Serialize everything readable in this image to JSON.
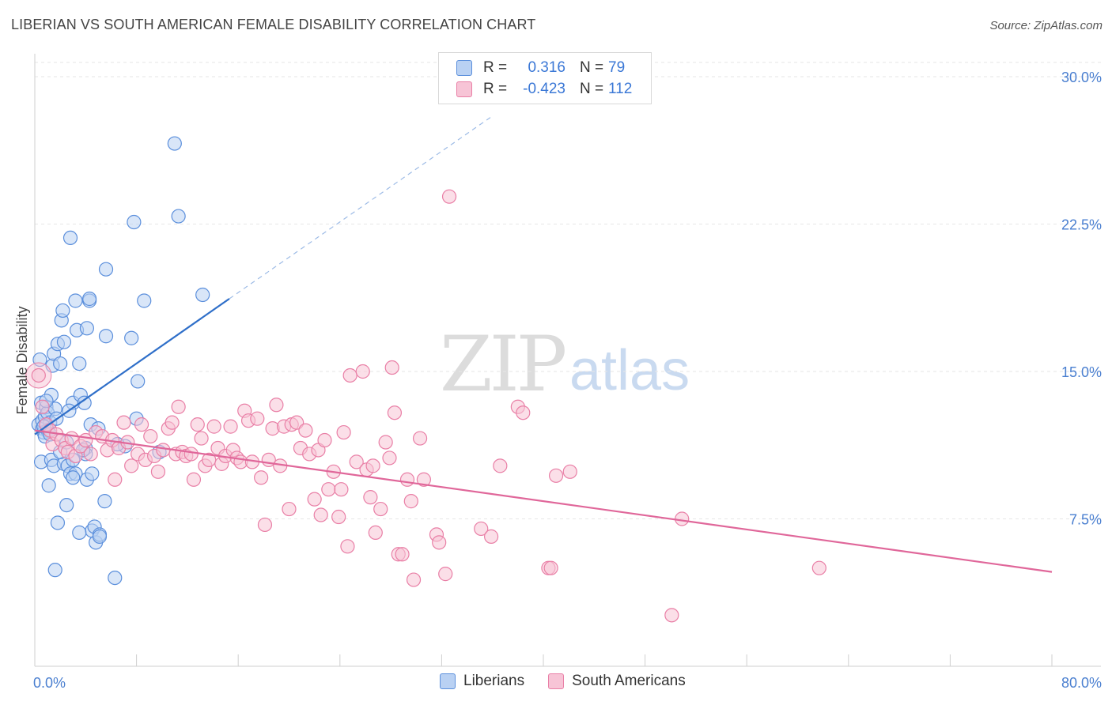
{
  "title": "LIBERIAN VS SOUTH AMERICAN FEMALE DISABILITY CORRELATION CHART",
  "source": "Source: ZipAtlas.com",
  "watermark": {
    "zip": "ZIP",
    "atlas": "atlas"
  },
  "colors": {
    "blue": "#5b8fdc",
    "blue_fill": "#b9d1f3",
    "blue_line": "#2f6fc9",
    "pink": "#e97fa6",
    "pink_fill": "#f7c4d6",
    "pink_line": "#e0679a",
    "grid": "#e6e6e6",
    "axis_text": "#4a7fd0"
  },
  "legend_top": {
    "rows": [
      {
        "r_label": "R =",
        "r_value": "0.316",
        "n_label": "N =",
        "n_value": "79"
      },
      {
        "r_label": "R =",
        "r_value": "-0.423",
        "n_label": "N =",
        "n_value": "112"
      }
    ]
  },
  "legend_bottom": {
    "series1": "Liberians",
    "series2": "South Americans"
  },
  "chart_data": {
    "type": "scatter",
    "title": "LIBERIAN VS SOUTH AMERICAN FEMALE DISABILITY CORRELATION CHART",
    "xlabel": "",
    "ylabel": "Female Disability",
    "xlim": [
      0,
      80
    ],
    "ylim": [
      0,
      31
    ],
    "x_tick_labels": [
      "0.0%",
      "80.0%"
    ],
    "y_ticks": [
      7.5,
      15.0,
      22.5,
      30.0
    ],
    "y_tick_labels": [
      "7.5%",
      "15.0%",
      "22.5%",
      "30.0%"
    ],
    "series": [
      {
        "name": "Liberians",
        "R": 0.316,
        "N": 79,
        "trend": {
          "x0": 0,
          "y0": 11.8,
          "x1": 15.3,
          "y1": 18.7,
          "dashed_to_x": 36,
          "dashed_to_y": 28.0
        },
        "points": [
          [
            0.3,
            12.3
          ],
          [
            0.4,
            15.6
          ],
          [
            0.5,
            13.4
          ],
          [
            0.6,
            12.1
          ],
          [
            0.6,
            12.5
          ],
          [
            0.7,
            11.9
          ],
          [
            0.8,
            12.7
          ],
          [
            0.5,
            10.4
          ],
          [
            0.9,
            13.2
          ],
          [
            1.0,
            12.9
          ],
          [
            1.1,
            9.2
          ],
          [
            1.2,
            12.4
          ],
          [
            1.3,
            13.8
          ],
          [
            1.3,
            10.5
          ],
          [
            1.4,
            15.3
          ],
          [
            1.5,
            15.9
          ],
          [
            1.5,
            10.2
          ],
          [
            1.6,
            13.1
          ],
          [
            1.6,
            4.9
          ],
          [
            1.8,
            7.3
          ],
          [
            1.8,
            16.4
          ],
          [
            2.0,
            15.4
          ],
          [
            2.1,
            17.6
          ],
          [
            2.2,
            18.1
          ],
          [
            2.3,
            16.5
          ],
          [
            2.3,
            10.3
          ],
          [
            2.5,
            8.2
          ],
          [
            2.6,
            10.2
          ],
          [
            2.8,
            9.8
          ],
          [
            2.8,
            21.8
          ],
          [
            3.0,
            10.5
          ],
          [
            3.0,
            13.4
          ],
          [
            3.2,
            18.6
          ],
          [
            3.2,
            9.8
          ],
          [
            3.3,
            17.1
          ],
          [
            3.5,
            15.4
          ],
          [
            3.6,
            13.8
          ],
          [
            3.9,
            13.4
          ],
          [
            4.0,
            11.1
          ],
          [
            4.1,
            9.5
          ],
          [
            4.1,
            17.2
          ],
          [
            4.3,
            18.6
          ],
          [
            4.3,
            18.7
          ],
          [
            4.4,
            12.3
          ],
          [
            4.5,
            9.8
          ],
          [
            4.5,
            6.9
          ],
          [
            4.7,
            7.1
          ],
          [
            4.8,
            6.3
          ],
          [
            5.1,
            6.7
          ],
          [
            5.1,
            6.6
          ],
          [
            5.5,
            8.4
          ],
          [
            5.6,
            16.8
          ],
          [
            5.6,
            20.2
          ],
          [
            6.3,
            4.5
          ],
          [
            7.1,
            11.2
          ],
          [
            7.6,
            16.7
          ],
          [
            7.8,
            22.6
          ],
          [
            8.0,
            12.6
          ],
          [
            8.1,
            14.5
          ],
          [
            8.6,
            18.6
          ],
          [
            9.8,
            10.9
          ],
          [
            11.0,
            26.6
          ],
          [
            11.3,
            22.9
          ],
          [
            13.2,
            18.9
          ],
          [
            3.5,
            6.8
          ],
          [
            2.0,
            10.9
          ],
          [
            4.0,
            10.8
          ],
          [
            1.0,
            12.0
          ],
          [
            0.8,
            11.7
          ],
          [
            0.7,
            12.2
          ],
          [
            3.0,
            9.6
          ],
          [
            6.5,
            11.3
          ],
          [
            2.5,
            11.4
          ],
          [
            1.2,
            11.8
          ],
          [
            5.0,
            12.1
          ],
          [
            3.8,
            11.0
          ],
          [
            0.9,
            13.5
          ],
          [
            1.7,
            12.6
          ],
          [
            2.7,
            13.0
          ]
        ]
      },
      {
        "name": "South Americans",
        "R": -0.423,
        "N": 112,
        "trend": {
          "x0": 0,
          "y0": 12.0,
          "x1": 80,
          "y1": 4.8
        },
        "points": [
          [
            0.3,
            14.8
          ],
          [
            0.6,
            13.2
          ],
          [
            0.9,
            12.3
          ],
          [
            1.2,
            12.0
          ],
          [
            1.4,
            11.3
          ],
          [
            1.7,
            11.8
          ],
          [
            2.1,
            11.5
          ],
          [
            2.4,
            11.1
          ],
          [
            2.6,
            10.9
          ],
          [
            2.9,
            11.6
          ],
          [
            3.2,
            10.7
          ],
          [
            3.6,
            11.2
          ],
          [
            4.0,
            11.5
          ],
          [
            4.4,
            10.8
          ],
          [
            4.8,
            11.9
          ],
          [
            5.3,
            11.7
          ],
          [
            5.7,
            11.0
          ],
          [
            6.1,
            11.5
          ],
          [
            6.3,
            9.5
          ],
          [
            6.6,
            11.1
          ],
          [
            7.0,
            12.4
          ],
          [
            7.3,
            11.4
          ],
          [
            7.6,
            10.2
          ],
          [
            8.1,
            10.8
          ],
          [
            8.4,
            12.3
          ],
          [
            8.7,
            10.5
          ],
          [
            9.1,
            11.7
          ],
          [
            9.4,
            10.7
          ],
          [
            9.7,
            9.9
          ],
          [
            10.1,
            11.0
          ],
          [
            10.5,
            12.1
          ],
          [
            10.8,
            12.4
          ],
          [
            11.1,
            10.8
          ],
          [
            11.3,
            13.2
          ],
          [
            11.6,
            10.9
          ],
          [
            11.9,
            10.7
          ],
          [
            12.3,
            10.8
          ],
          [
            12.5,
            9.5
          ],
          [
            12.8,
            12.3
          ],
          [
            13.1,
            11.6
          ],
          [
            13.4,
            10.2
          ],
          [
            13.7,
            10.5
          ],
          [
            14.1,
            12.2
          ],
          [
            14.4,
            11.1
          ],
          [
            14.7,
            10.3
          ],
          [
            15.0,
            10.7
          ],
          [
            15.4,
            12.2
          ],
          [
            15.6,
            11.0
          ],
          [
            15.9,
            10.6
          ],
          [
            16.2,
            10.4
          ],
          [
            16.5,
            13.0
          ],
          [
            16.8,
            12.5
          ],
          [
            17.1,
            10.4
          ],
          [
            17.5,
            12.6
          ],
          [
            17.8,
            9.6
          ],
          [
            18.1,
            7.2
          ],
          [
            18.4,
            10.5
          ],
          [
            18.7,
            12.1
          ],
          [
            19.0,
            13.3
          ],
          [
            19.3,
            10.2
          ],
          [
            19.6,
            12.2
          ],
          [
            20.0,
            8.0
          ],
          [
            20.2,
            12.3
          ],
          [
            20.6,
            12.4
          ],
          [
            20.9,
            11.1
          ],
          [
            21.3,
            12.0
          ],
          [
            21.6,
            10.8
          ],
          [
            22.0,
            8.5
          ],
          [
            22.3,
            11.0
          ],
          [
            22.5,
            7.7
          ],
          [
            22.8,
            11.5
          ],
          [
            23.1,
            9.0
          ],
          [
            23.5,
            9.9
          ],
          [
            23.9,
            7.6
          ],
          [
            24.1,
            9.0
          ],
          [
            24.3,
            11.9
          ],
          [
            24.6,
            6.1
          ],
          [
            24.8,
            14.8
          ],
          [
            25.3,
            10.4
          ],
          [
            25.8,
            15.0
          ],
          [
            26.1,
            10.0
          ],
          [
            26.4,
            8.6
          ],
          [
            26.6,
            10.2
          ],
          [
            26.8,
            6.8
          ],
          [
            27.2,
            8.0
          ],
          [
            27.6,
            11.4
          ],
          [
            27.9,
            10.6
          ],
          [
            28.1,
            15.2
          ],
          [
            28.3,
            12.9
          ],
          [
            28.6,
            5.7
          ],
          [
            28.9,
            5.7
          ],
          [
            29.3,
            9.5
          ],
          [
            29.6,
            8.4
          ],
          [
            29.8,
            4.4
          ],
          [
            30.3,
            11.6
          ],
          [
            30.6,
            9.5
          ],
          [
            31.6,
            6.7
          ],
          [
            31.8,
            6.3
          ],
          [
            32.3,
            4.7
          ],
          [
            32.6,
            23.9
          ],
          [
            35.1,
            7.0
          ],
          [
            35.9,
            6.6
          ],
          [
            36.6,
            10.2
          ],
          [
            38.0,
            13.2
          ],
          [
            38.4,
            12.9
          ],
          [
            40.4,
            5.0
          ],
          [
            40.6,
            5.0
          ],
          [
            41.0,
            9.7
          ],
          [
            42.1,
            9.9
          ],
          [
            50.1,
            2.6
          ],
          [
            50.9,
            7.5
          ],
          [
            61.7,
            5.0
          ]
        ]
      }
    ]
  }
}
